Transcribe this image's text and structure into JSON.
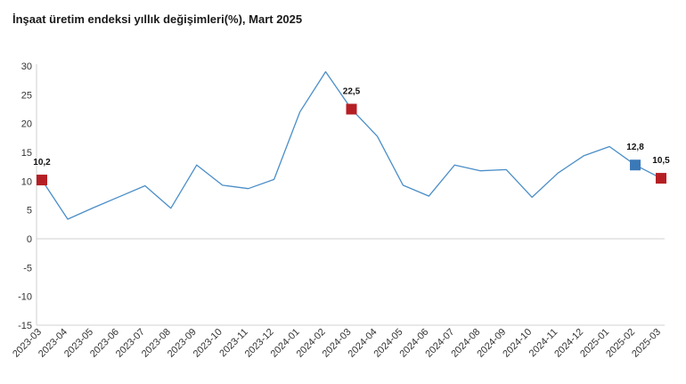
{
  "chart_data": {
    "type": "line",
    "title": "İnşaat üretim endeksi yıllık değişimleri(%), Mart 2025",
    "xlabel": "",
    "ylabel": "",
    "ylim": [
      -15,
      30
    ],
    "yticks": [
      30,
      25,
      20,
      15,
      10,
      5,
      0,
      -5,
      -10,
      -15
    ],
    "grid": false,
    "categories": [
      "2023-03",
      "2023-04",
      "2023-05",
      "2023-06",
      "2023-07",
      "2023-08",
      "2023-09",
      "2023-10",
      "2023-11",
      "2023-12",
      "2024-01",
      "2024-02",
      "2024-03",
      "2024-04",
      "2024-05",
      "2024-06",
      "2024-07",
      "2024-08",
      "2024-09",
      "2024-10",
      "2024-11",
      "2024-12",
      "2025-01",
      "2025-02",
      "2025-03"
    ],
    "series": [
      {
        "values": [
          10.2,
          3.4,
          5.4,
          7.3,
          9.2,
          5.3,
          12.8,
          9.3,
          8.7,
          10.3,
          22.0,
          29.0,
          22.5,
          17.8,
          9.3,
          7.4,
          12.8,
          11.8,
          12.0,
          7.2,
          11.4,
          14.4,
          16.0,
          12.8,
          10.5
        ]
      }
    ],
    "line_color": "#4a8ec8",
    "highlighted_points": [
      {
        "category": "2023-03",
        "value": 10.2,
        "label": "10,2",
        "color": "#b51f24"
      },
      {
        "category": "2024-03",
        "value": 22.5,
        "label": "22,5",
        "color": "#b51f24"
      },
      {
        "category": "2025-02",
        "value": 12.8,
        "label": "12,8",
        "color": "#3a78b8"
      },
      {
        "category": "2025-03",
        "value": 10.5,
        "label": "10,5",
        "color": "#b51f24"
      }
    ]
  }
}
